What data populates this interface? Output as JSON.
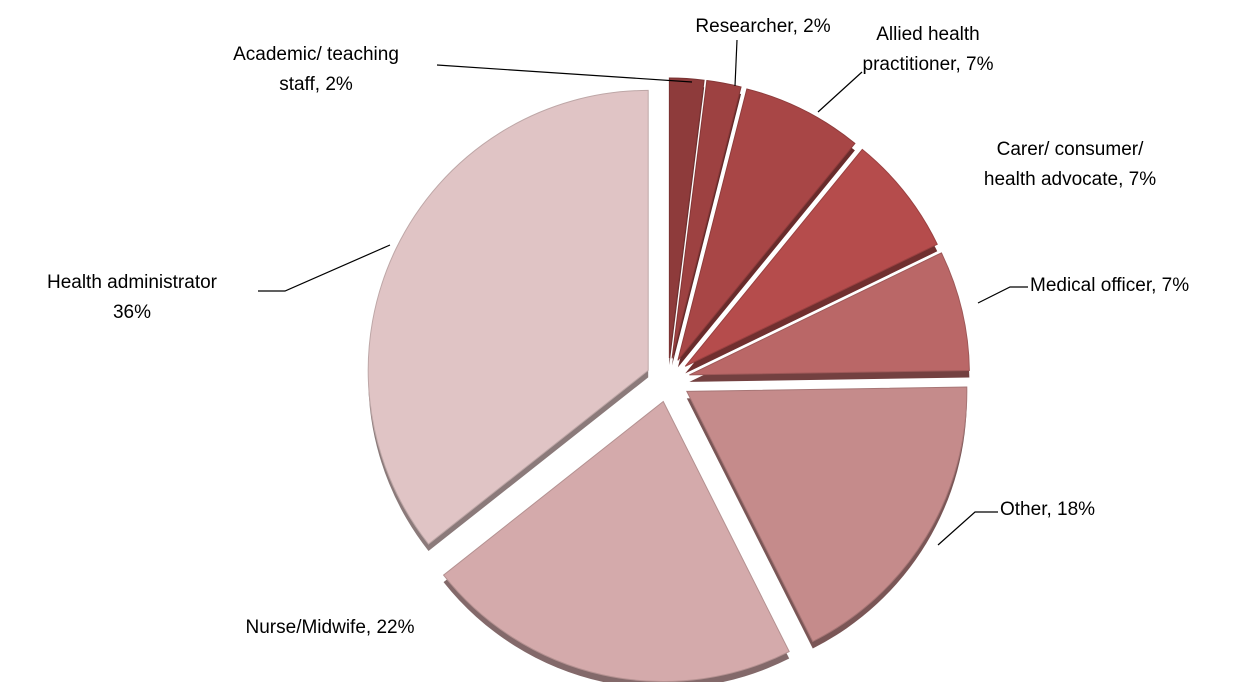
{
  "chart_data": {
    "type": "pie",
    "values": [
      2,
      2,
      7,
      7,
      7,
      18,
      22,
      36
    ],
    "value_labels": [
      [
        "Academic/ teaching",
        "staff, 2%"
      ],
      [
        "Researcher, 2%"
      ],
      [
        "Allied health",
        "practitioner, 7%"
      ],
      [
        "Carer/ consumer/",
        "health advocate, 7%"
      ],
      [
        "Medical officer, 7%"
      ],
      [
        "Other, 18%"
      ],
      [
        "Nurse/Midwife, 22%"
      ],
      [
        "Health administrator",
        "36%"
      ]
    ],
    "colors": [
      "#8e3b3b",
      "#9d4141",
      "#a84646",
      "#b54c4c",
      "#ba6767",
      "#c58b8b",
      "#d4aaab",
      "#e0c4c5"
    ]
  }
}
